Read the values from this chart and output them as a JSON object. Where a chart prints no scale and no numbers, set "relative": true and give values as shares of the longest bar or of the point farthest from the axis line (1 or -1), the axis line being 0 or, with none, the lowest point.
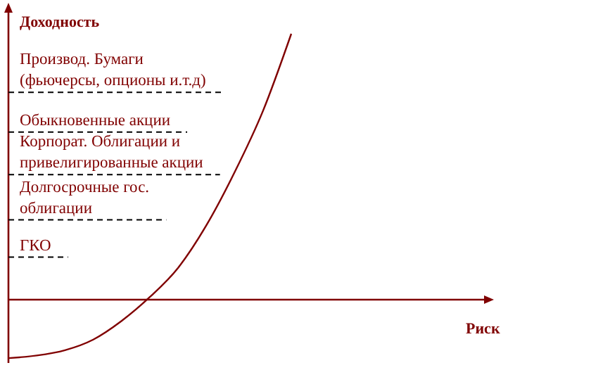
{
  "chart_data": {
    "type": "line",
    "relative": true,
    "title": "Доходность",
    "annotations": [
      "Риск"
    ],
    "categories": [
      null,
      null,
      null,
      null,
      null,
      null,
      null,
      null,
      null,
      null,
      null
    ],
    "series": [
      {
        "color": "#800000",
        "values": [
          -0.22,
          -0.21,
          -0.19,
          -0.15,
          -0.08,
          0.01,
          0.12,
          0.28,
          0.48,
          0.71,
          1
        ]
      }
    ],
    "ref_lines": [
      {
        "axis": "y",
        "value": 0,
        "color": "#800000",
        "line_style": "solid"
      },
      {
        "axis": "y",
        "value": 0.78,
        "label": "Производ. Бумаги\n(фьючерсы, опционы и.т.д)",
        "line_style": "dashed",
        "color": "#000000"
      },
      {
        "axis": "y",
        "value": 0.63,
        "label": "Обыкновенные акции",
        "line_style": "dashed",
        "color": "#000000"
      },
      {
        "axis": "y",
        "value": 0.47,
        "label": "Корпорат. Облигации и\nпривелигированные акции",
        "line_style": "dashed",
        "color": "#000000"
      },
      {
        "axis": "y",
        "value": 0.3,
        "label": "Долгосрочные гос.\nоблигации",
        "line_style": "dashed",
        "color": "#000000"
      },
      {
        "axis": "y",
        "value": 0.16,
        "label": "ГКО",
        "line_style": "dashed",
        "color": "#000000"
      }
    ],
    "line_style": "solid"
  }
}
